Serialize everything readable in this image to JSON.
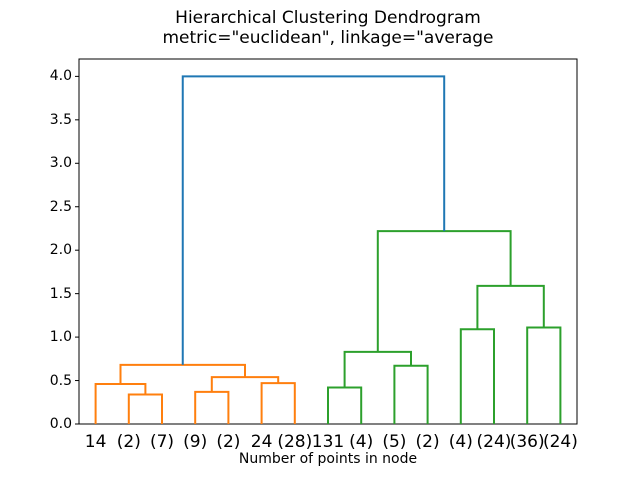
{
  "chart_data": {
    "type": "dendrogram",
    "title": "Hierarchical Clustering Dendrogram",
    "subtitle": "metric=\"euclidean\", linkage=\"average",
    "xlabel": "Number of points in node",
    "ylabel": "",
    "ylim": [
      0,
      4.2
    ],
    "grid": false,
    "legend": false,
    "y_tick_labels": [
      "0.0",
      "0.5",
      "1.0",
      "1.5",
      "2.0",
      "2.5",
      "3.0",
      "3.5",
      "4.0"
    ],
    "leaves": [
      "14",
      "(2)",
      "(7)",
      "(9)",
      "(2)",
      "24",
      "(28)",
      "131",
      "(4)",
      "(5)",
      "(2)",
      "(4)",
      "(24)",
      "(36)",
      "(24)"
    ],
    "merges": [
      {
        "id": "M0",
        "a": "L1",
        "b": "L2",
        "height": 0.34,
        "color": "orange"
      },
      {
        "id": "M1",
        "a": "L0",
        "b": "M0",
        "height": 0.46,
        "color": "orange"
      },
      {
        "id": "M2",
        "a": "L3",
        "b": "L4",
        "height": 0.37,
        "color": "orange"
      },
      {
        "id": "M3",
        "a": "L5",
        "b": "L6",
        "height": 0.47,
        "color": "orange"
      },
      {
        "id": "M4",
        "a": "M2",
        "b": "M3",
        "height": 0.54,
        "color": "orange"
      },
      {
        "id": "M5",
        "a": "M1",
        "b": "M4",
        "height": 0.68,
        "color": "orange"
      },
      {
        "id": "M6",
        "a": "L7",
        "b": "L8",
        "height": 0.42,
        "color": "green"
      },
      {
        "id": "M7",
        "a": "L9",
        "b": "L10",
        "height": 0.67,
        "color": "green"
      },
      {
        "id": "M8",
        "a": "M6",
        "b": "M7",
        "height": 0.83,
        "color": "green"
      },
      {
        "id": "M9",
        "a": "L11",
        "b": "L12",
        "height": 1.09,
        "color": "green"
      },
      {
        "id": "M10",
        "a": "L13",
        "b": "L14",
        "height": 1.11,
        "color": "green"
      },
      {
        "id": "M11",
        "a": "M9",
        "b": "M10",
        "height": 1.59,
        "color": "green"
      },
      {
        "id": "M12",
        "a": "M8",
        "b": "M11",
        "height": 2.22,
        "color": "green"
      },
      {
        "id": "M13",
        "a": "M5",
        "b": "M12",
        "height": 4.0,
        "color": "blue"
      }
    ],
    "colors": {
      "blue": "#1f77b4",
      "orange": "#ff7f0e",
      "green": "#2ca02c",
      "axis": "#000000"
    }
  }
}
